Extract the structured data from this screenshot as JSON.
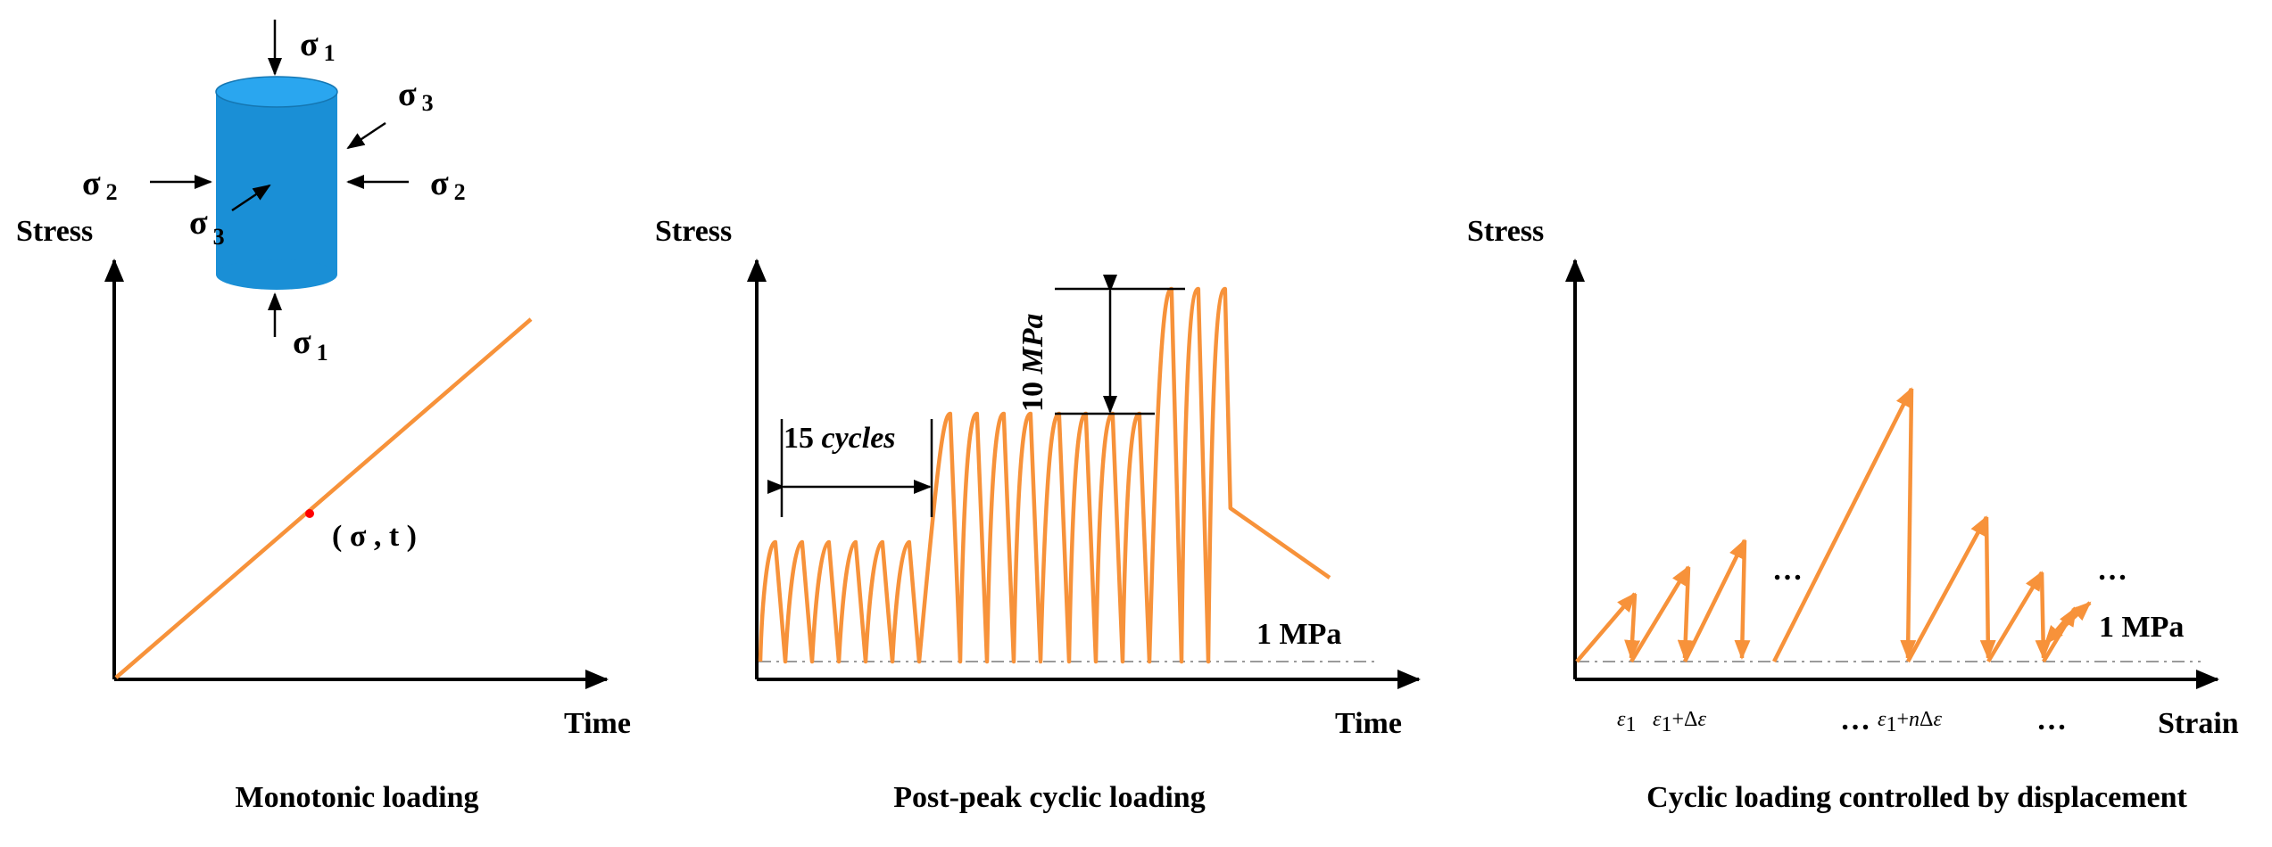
{
  "panel1": {
    "y_label": "Stress",
    "x_label": "Time",
    "caption": "Monotonic loading",
    "point_label": "( σ , t )",
    "stress_symbols": {
      "s1_top": "σ",
      "s1_top_sub": "1",
      "s1_bottom": "σ",
      "s1_bottom_sub": "1",
      "s2_left": "σ",
      "s2_left_sub": "2",
      "s2_right": "σ",
      "s2_right_sub": "2",
      "s3_top": "σ",
      "s3_top_sub": "3",
      "s3_front": "σ",
      "s3_front_sub": "3"
    },
    "colors": {
      "specimen": "#1a8fd6",
      "specimen_top": "#2aa6ef",
      "curve": "#f7923a",
      "point": "#ff0000"
    }
  },
  "panel2": {
    "y_label": "Stress",
    "x_label": "Time",
    "caption": "Post-peak cyclic loading",
    "cycles_label_num": "15",
    "cycles_label_word": "cycles",
    "step_label_num": "10",
    "step_label_unit": "MPa",
    "baseline_label": "1 MPa"
  },
  "panel3": {
    "y_label": "Stress",
    "x_label": "Strain",
    "caption": "Cyclic loading controlled by displacement",
    "baseline_label": "1 MPa",
    "ellipsis": "…",
    "tick_labels": {
      "e1": "ε",
      "e1_sub": "1",
      "e2": "ε",
      "e2_sub": "1",
      "e2_rest": "+Δ",
      "e2_eps": "ε",
      "e3": "ε",
      "e3_sub": "1",
      "e3_rest": "+",
      "e3_n": "n",
      "e3_delta": "Δ",
      "e3_eps": "ε"
    }
  }
}
